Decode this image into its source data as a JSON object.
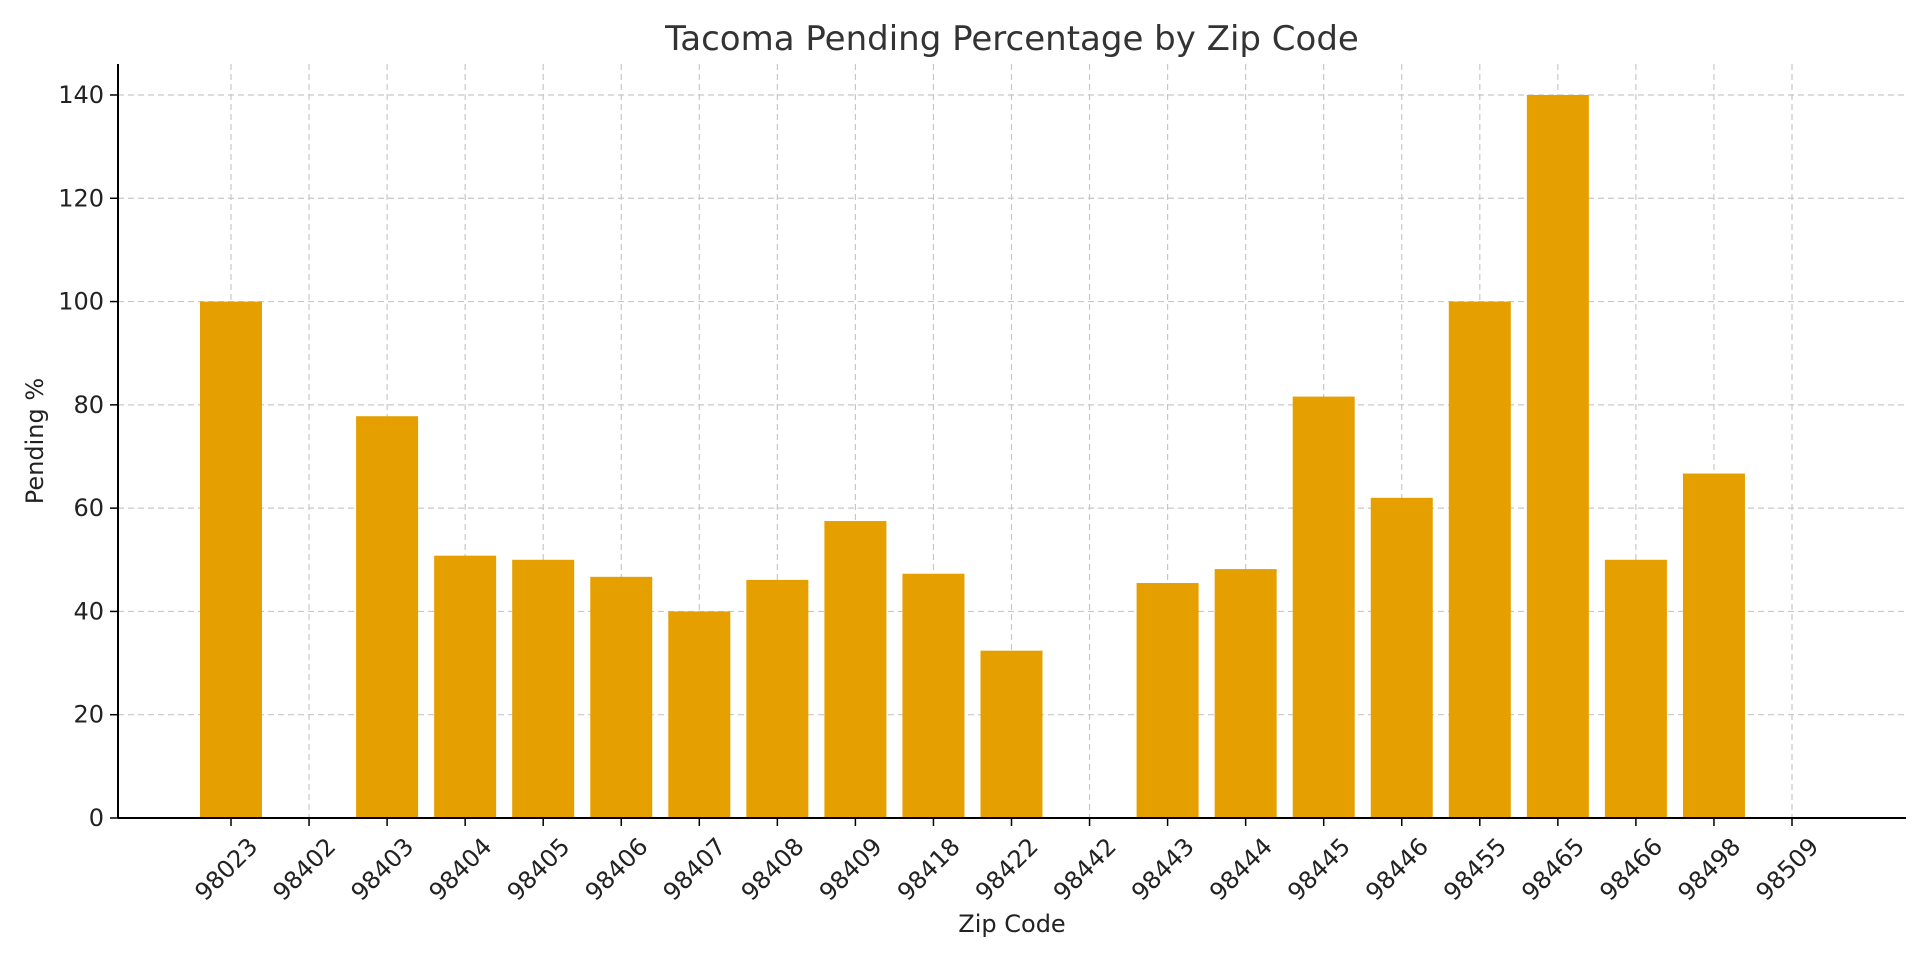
{
  "chart_data": {
    "type": "bar",
    "title": "Tacoma Pending Percentage by Zip Code",
    "xlabel": "Zip Code",
    "ylabel": "Pending %",
    "categories": [
      "98023",
      "98402",
      "98403",
      "98404",
      "98405",
      "98406",
      "98407",
      "98408",
      "98409",
      "98418",
      "98422",
      "98442",
      "98443",
      "98444",
      "98445",
      "98446",
      "98455",
      "98465",
      "98466",
      "98498",
      "98509"
    ],
    "values": [
      100,
      0,
      77.8,
      50.8,
      50,
      46.7,
      40,
      46.1,
      57.5,
      47.3,
      32.4,
      0,
      45.5,
      48.2,
      81.6,
      62,
      100,
      140,
      50,
      66.7,
      0
    ],
    "ylim": [
      0,
      146
    ],
    "yticks": [
      0,
      20,
      40,
      60,
      80,
      100,
      120,
      140
    ],
    "grid": true,
    "bar_color": "#e5a000"
  }
}
